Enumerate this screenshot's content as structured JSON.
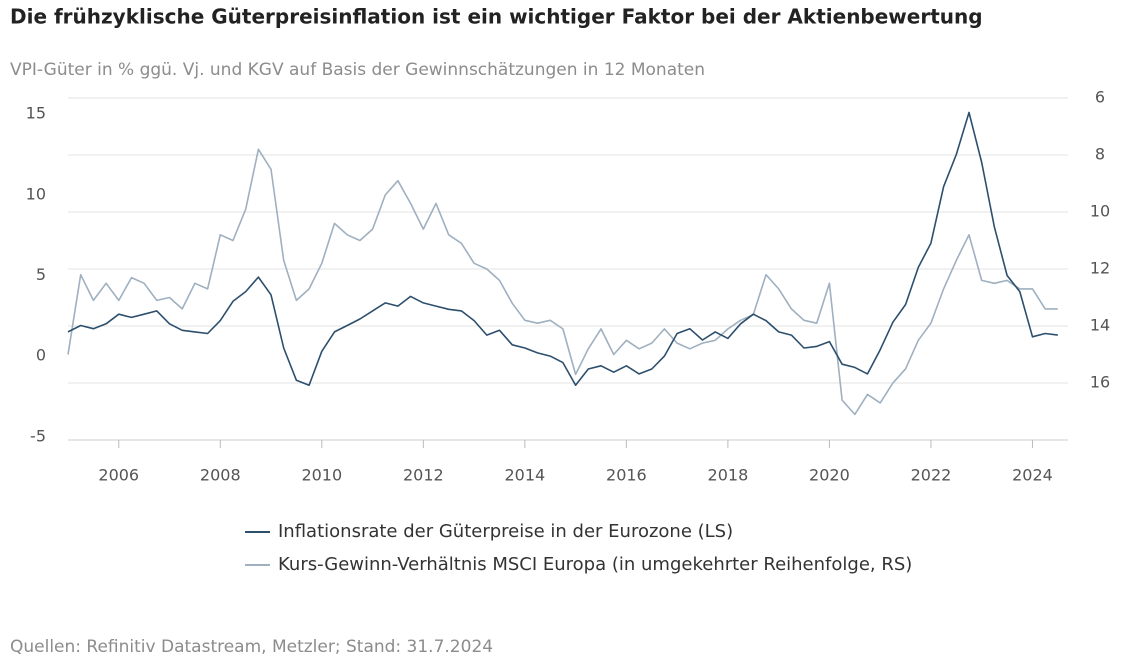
{
  "chart_data": {
    "type": "line",
    "title": "Die frühzyklische Güterpreisinflation ist ein wichtiger Faktor bei der Aktienbewertung",
    "subtitle": "VPI-Güter in % ggü. Vj. und KGV auf Basis der Gewinnschätzungen in 12 Monaten",
    "source": "Quellen: Refinitiv Datastream, Metzler; Stand: 31.7.2024",
    "x": [
      2005.0,
      2005.25,
      2005.5,
      2005.75,
      2006.0,
      2006.25,
      2006.5,
      2006.75,
      2007.0,
      2007.25,
      2007.5,
      2007.75,
      2008.0,
      2008.25,
      2008.5,
      2008.75,
      2009.0,
      2009.25,
      2009.5,
      2009.75,
      2010.0,
      2010.25,
      2010.5,
      2010.75,
      2011.0,
      2011.25,
      2011.5,
      2011.75,
      2012.0,
      2012.25,
      2012.5,
      2012.75,
      2013.0,
      2013.25,
      2013.5,
      2013.75,
      2014.0,
      2014.25,
      2014.5,
      2014.75,
      2015.0,
      2015.25,
      2015.5,
      2015.75,
      2016.0,
      2016.25,
      2016.5,
      2016.75,
      2017.0,
      2017.25,
      2017.5,
      2017.75,
      2018.0,
      2018.25,
      2018.5,
      2018.75,
      2019.0,
      2019.25,
      2019.5,
      2019.75,
      2020.0,
      2020.25,
      2020.5,
      2020.75,
      2021.0,
      2021.25,
      2021.5,
      2021.75,
      2022.0,
      2022.25,
      2022.5,
      2022.75,
      2023.0,
      2023.25,
      2023.5,
      2023.75,
      2024.0,
      2024.25,
      2024.5
    ],
    "series": [
      {
        "name": "Inflationsrate der Güterpreise in der Eurozone (LS)",
        "color": "#2d4f6e",
        "values": [
          1.5,
          1.9,
          1.7,
          2.0,
          2.6,
          2.4,
          2.6,
          2.8,
          2.0,
          1.6,
          1.5,
          1.4,
          2.2,
          3.4,
          4.0,
          4.9,
          3.8,
          0.5,
          -1.5,
          -1.8,
          0.3,
          1.5,
          1.9,
          2.3,
          2.8,
          3.3,
          3.1,
          3.7,
          3.3,
          3.1,
          2.9,
          2.8,
          2.2,
          1.3,
          1.6,
          0.7,
          0.5,
          0.2,
          0.0,
          -0.4,
          -1.8,
          -0.8,
          -0.6,
          -1.0,
          -0.6,
          -1.1,
          -0.8,
          0.0,
          1.4,
          1.7,
          1.0,
          1.5,
          1.1,
          2.0,
          2.6,
          2.2,
          1.5,
          1.3,
          0.5,
          0.6,
          0.9,
          -0.5,
          -0.7,
          -1.1,
          0.4,
          2.1,
          3.2,
          5.5,
          7.0,
          10.5,
          12.5,
          15.1,
          12.0,
          8.0,
          5.0,
          4.0,
          1.2,
          1.4,
          1.3
        ]
      },
      {
        "name": "Kurs-Gewinn-Verhältnis MSCI Europa (in umgekehrter Reihenfolge, RS)",
        "color": "#9fb0c0",
        "axis": "y2",
        "values": [
          15.0,
          12.2,
          13.1,
          12.5,
          13.1,
          12.3,
          12.5,
          13.1,
          13.0,
          13.4,
          12.5,
          12.7,
          10.8,
          11.0,
          9.9,
          7.8,
          8.5,
          11.7,
          13.1,
          12.7,
          11.8,
          10.4,
          10.8,
          11.0,
          10.6,
          9.4,
          8.9,
          9.7,
          10.6,
          9.7,
          10.8,
          11.1,
          11.8,
          12.0,
          12.4,
          13.2,
          13.8,
          13.9,
          13.8,
          14.1,
          15.7,
          14.8,
          14.1,
          15.0,
          14.5,
          14.8,
          14.6,
          14.1,
          14.6,
          14.8,
          14.6,
          14.5,
          14.1,
          13.8,
          13.6,
          12.2,
          12.7,
          13.4,
          13.8,
          13.9,
          12.5,
          16.6,
          17.1,
          16.4,
          16.7,
          16.0,
          15.5,
          14.5,
          13.9,
          12.7,
          11.7,
          10.8,
          12.4,
          12.5,
          12.4,
          12.7,
          12.7,
          13.4,
          13.4
        ]
      }
    ],
    "xlim": [
      2005.0,
      2024.7
    ],
    "xticks": [
      2006,
      2008,
      2010,
      2012,
      2014,
      2016,
      2018,
      2020,
      2022,
      2024
    ],
    "ylim": [
      -5.2,
      16
    ],
    "yticks": [
      -5,
      0,
      5,
      10,
      15
    ],
    "y2lim": [
      18,
      6
    ],
    "y2ticks": [
      6,
      8,
      10,
      12,
      14,
      16
    ],
    "grid": true
  }
}
